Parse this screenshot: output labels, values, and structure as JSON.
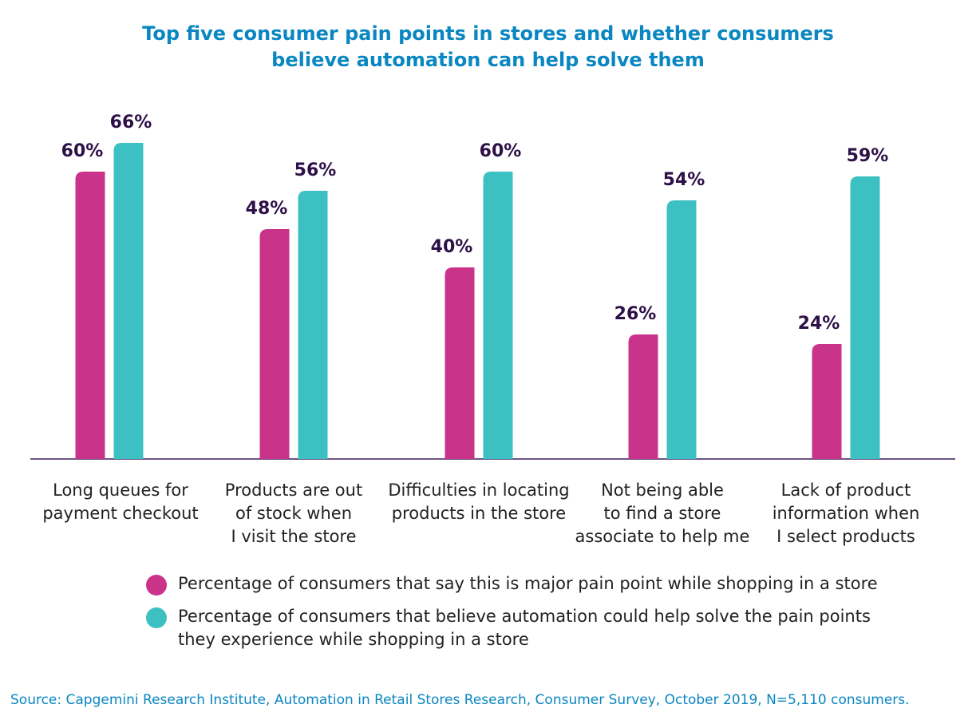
{
  "chart_data": {
    "type": "bar",
    "title": [
      "Top five consumer pain points in stores and whether consumers",
      "believe automation can help solve them"
    ],
    "categories": [
      [
        "Long queues for",
        "payment checkout"
      ],
      [
        "Products are out",
        "of stock when",
        "I visit the store"
      ],
      [
        "Difficulties in locating",
        "products in the store"
      ],
      [
        "Not being able",
        "to find a store",
        "associate to help me"
      ],
      [
        "Lack of product",
        "information when",
        "I select products"
      ]
    ],
    "series": [
      {
        "name": "Percentage of consumers that say this is major pain point while shopping in  a store",
        "color": "#c9348a",
        "values": [
          60,
          48,
          40,
          26,
          24
        ]
      },
      {
        "name": "Percentage of consumers that believe automation could help solve the pain points they experience while shopping in a store",
        "color": "#3cc0c1",
        "values": [
          66,
          56,
          60,
          54,
          59
        ]
      }
    ],
    "value_suffix": "%",
    "ylim": [
      0,
      66
    ],
    "grid": false,
    "legend_position": "bottom"
  },
  "legend": {
    "items": [
      {
        "lines": [
          "Percentage of consumers that say this is major pain point while shopping in  a store"
        ],
        "color": "#c9348a"
      },
      {
        "lines": [
          "Percentage of consumers that believe automation could help solve the pain points",
          "they experience while shopping in a store"
        ],
        "color": "#3cc0c1"
      }
    ]
  },
  "source": "Source: Capgemini Research Institute, Automation in Retail Stores Research, Consumer Survey, October 2019, N=5,110 consumers.",
  "colors": {
    "title": "#0a86c1",
    "axis": "#3b1d5a",
    "data_label": "#2e1048",
    "text": "#222222"
  }
}
